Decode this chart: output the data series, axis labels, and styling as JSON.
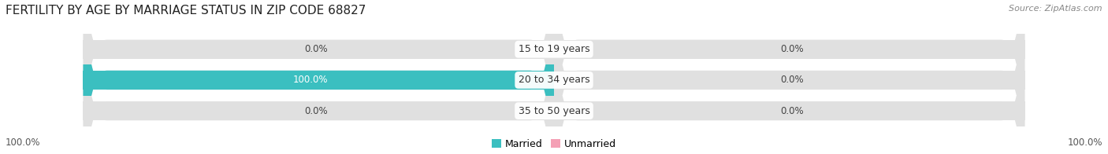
{
  "title": "FERTILITY BY AGE BY MARRIAGE STATUS IN ZIP CODE 68827",
  "source": "Source: ZipAtlas.com",
  "categories": [
    "15 to 19 years",
    "20 to 34 years",
    "35 to 50 years"
  ],
  "married_values": [
    0.0,
    100.0,
    0.0
  ],
  "unmarried_values": [
    0.0,
    0.0,
    0.0
  ],
  "married_color": "#3bbfc0",
  "unmarried_color": "#f4a0b5",
  "bg_color": "#ffffff",
  "row_bg_odd": "#f2f2f2",
  "row_bg_even": "#e8e8e8",
  "bar_bg_color": "#e0e0e0",
  "title_fontsize": 11,
  "label_fontsize": 9,
  "tick_fontsize": 8.5,
  "source_fontsize": 8,
  "max_value": 100.0,
  "bottom_left_label": "100.0%",
  "bottom_right_label": "100.0%"
}
